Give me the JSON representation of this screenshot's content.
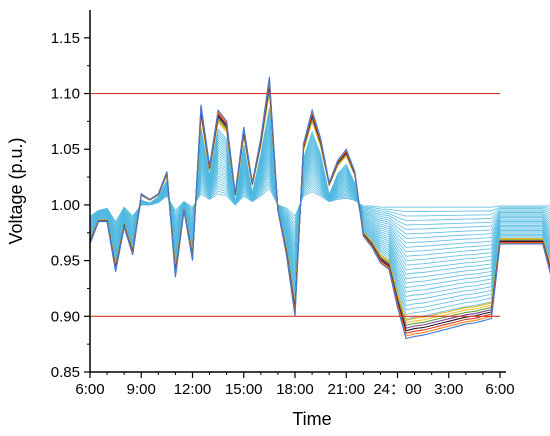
{
  "chart_data": {
    "type": "line",
    "xlabel": "Time",
    "ylabel": "Voltage (p.u.)",
    "ylim": [
      0.85,
      1.175
    ],
    "x_tick_labels": [
      "6:00",
      "9:00",
      "12:00",
      "15:00",
      "18:00",
      "21:00",
      "24：00",
      "3:00",
      "6:00"
    ],
    "y_tick_labels": [
      "0.85",
      "0.90",
      "0.95",
      "1.00",
      "1.05",
      "1.10",
      "1.15"
    ],
    "y_ticks": [
      0.85,
      0.9,
      0.95,
      1.0,
      1.05,
      1.1,
      1.15
    ],
    "grid": false,
    "legend": "none",
    "limits": [
      {
        "value": 1.1,
        "color": "#d8372c"
      },
      {
        "value": 0.9,
        "color": "#d8372c"
      }
    ],
    "samples_per_hour": 2,
    "bus_envelopes": {
      "upper_high": [
        0.97,
        0.99,
        0.99,
        0.945,
        0.985,
        0.96,
        1.01,
        1.005,
        1.01,
        1.03,
        0.94,
        1.0,
        0.955,
        1.09,
        1.035,
        1.085,
        1.075,
        1.01,
        1.07,
        1.02,
        1.06,
        1.115,
        1.005,
        0.965,
        0.905,
        1.055,
        1.085,
        1.06,
        1.02,
        1.04,
        1.05,
        1.03,
        0.98,
        0.97,
        0.955,
        0.95,
        0.92,
        0.895,
        0.9,
        0.9,
        0.903,
        0.905,
        0.908,
        0.91,
        0.912,
        0.913,
        0.915,
        0.917,
        0.97,
        0.97,
        0.97,
        0.97,
        0.97,
        0.97,
        0.945,
        0.93,
        0.925,
        0.945,
        0.945,
        0.975,
        0.975,
        0.975
      ],
      "upper_low": [
        0.99,
        0.995,
        0.997,
        0.985,
        0.998,
        0.99,
        1.0,
        1.0,
        1.002,
        1.008,
        0.995,
        1.003,
        0.998,
        1.01,
        1.005,
        1.01,
        1.008,
        1.0,
        1.008,
        1.003,
        1.008,
        1.015,
        1.0,
        0.997,
        0.99,
        1.008,
        1.012,
        1.008,
        1.003,
        1.005,
        1.006,
        1.004,
        0.999,
        0.999,
        0.998,
        0.998,
        0.998,
        0.998,
        0.998,
        0.998,
        0.998,
        0.998,
        0.998,
        0.998,
        0.998,
        0.998,
        0.998,
        0.998,
        0.999,
        0.999,
        0.999,
        0.999,
        0.999,
        0.999,
        0.999,
        0.999,
        0.999,
        0.999,
        0.999,
        0.999,
        0.999,
        0.999
      ],
      "lower_high": [
        0.985,
        0.995,
        0.995,
        0.965,
        0.992,
        0.98,
        1.005,
        1.002,
        1.005,
        1.018,
        0.97,
        1.002,
        0.98,
        1.05,
        1.02,
        1.045,
        1.04,
        1.005,
        1.04,
        1.01,
        1.035,
        1.06,
        1.002,
        0.982,
        0.95,
        1.03,
        1.048,
        1.035,
        1.012,
        1.022,
        1.028,
        1.018,
        0.99,
        0.988,
        0.982,
        0.98,
        0.978,
        0.976,
        0.976,
        0.976,
        0.976,
        0.977,
        0.977,
        0.977,
        0.978,
        0.978,
        0.978,
        0.979,
        0.99,
        0.99,
        0.99,
        0.99,
        0.99,
        0.99,
        0.985,
        0.983,
        0.982,
        0.985,
        0.985,
        0.99,
        0.99,
        0.99
      ],
      "lower_low": [
        0.965,
        0.985,
        0.985,
        0.94,
        0.98,
        0.955,
        1.005,
        1.002,
        1.008,
        1.025,
        0.935,
        0.995,
        0.95,
        1.08,
        1.03,
        1.078,
        1.068,
        1.002,
        1.062,
        1.012,
        1.052,
        1.1,
        0.995,
        0.955,
        0.9,
        1.048,
        1.075,
        1.052,
        1.01,
        1.032,
        1.042,
        1.022,
        0.972,
        0.962,
        0.948,
        0.942,
        0.908,
        0.88,
        0.882,
        0.883,
        0.885,
        0.887,
        0.889,
        0.891,
        0.893,
        0.894,
        0.896,
        0.898,
        0.965,
        0.965,
        0.965,
        0.965,
        0.965,
        0.965,
        0.935,
        0.922,
        0.918,
        0.935,
        0.935,
        0.968,
        0.968,
        0.968
      ]
    },
    "series_colors": [
      "#e8b41e",
      "#f2c232",
      "#5aa02c",
      "#7e3fa0",
      "#1e1e1e",
      "#d8372c",
      "#ff7f0e",
      "#3c78d8"
    ],
    "light_series_color": "#4fb8e0",
    "light_series_count": 26
  }
}
